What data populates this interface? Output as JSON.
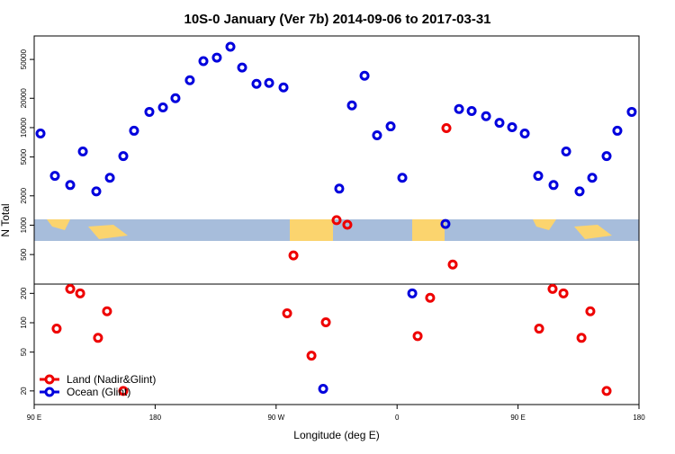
{
  "chart_data": {
    "type": "scatter",
    "title": "10S-0 January (Ver 7b)   2014-09-06 to 2017-03-31",
    "x_label": "Longitude (deg E)",
    "y_label": "N Total",
    "xlim": [
      90,
      540
    ],
    "ylim": [
      14.5,
      87000
    ],
    "y_log": true,
    "legend": "bottom-left",
    "xticks": [
      {
        "value": 90,
        "label": "90 E"
      },
      180,
      {
        "value": 270,
        "label": "90 W"
      },
      {
        "value": 360,
        "label": "0"
      },
      {
        "value": 450,
        "label": "90 E"
      },
      {
        "value": 540,
        "label": "180"
      }
    ],
    "yticks": [
      20,
      50,
      100,
      200,
      500,
      1000,
      2000,
      5000,
      10000,
      20000,
      50000
    ],
    "series": [
      {
        "name": "Land (Nadir&Glint)",
        "color": "#ee0000",
        "x": [
          106.7,
          116.8,
          124.2,
          137.5,
          144.2,
          156.3,
          282.9,
          278.2,
          296.3,
          307,
          315,
          323,
          375.3,
          384.6,
          396.7,
          401.4,
          465.7,
          475.7,
          483.8,
          497.2,
          503.8,
          515.9
        ],
        "values": [
          87,
          222,
          200,
          70,
          131,
          20,
          490,
          125,
          46,
          101,
          1125,
          1010,
          73,
          180,
          9890,
          395,
          87,
          222,
          200,
          70,
          131,
          20
        ]
      },
      {
        "name": "Ocean (Glint)",
        "color": "#0000dd",
        "x": [
          94.7,
          105.4,
          116.8,
          126.2,
          136.2,
          146.3,
          156.3,
          164.3,
          175.7,
          185.8,
          195.1,
          205.8,
          215.9,
          225.9,
          236,
          244.7,
          255.4,
          264.8,
          275.5,
          317,
          326.4,
          335.8,
          345.1,
          355.2,
          363.9,
          396,
          406.1,
          415.5,
          426.2,
          436.2,
          445.6,
          455,
          465,
          476.4,
          485.8,
          495.8,
          505.2,
          515.9,
          523.9,
          534.6,
          371.3,
          305
        ],
        "values": [
          8700,
          3200,
          2580,
          5690,
          2220,
          3060,
          5110,
          9290,
          14500,
          16100,
          20000,
          30600,
          48000,
          52200,
          67400,
          41300,
          28100,
          28700,
          25800,
          2370,
          16900,
          34000,
          8340,
          10300,
          3060,
          1030,
          15500,
          14800,
          13100,
          11200,
          10100,
          8700,
          3200,
          2580,
          5690,
          2220,
          3060,
          5110,
          9290,
          14500,
          200,
          21
        ]
      }
    ]
  }
}
